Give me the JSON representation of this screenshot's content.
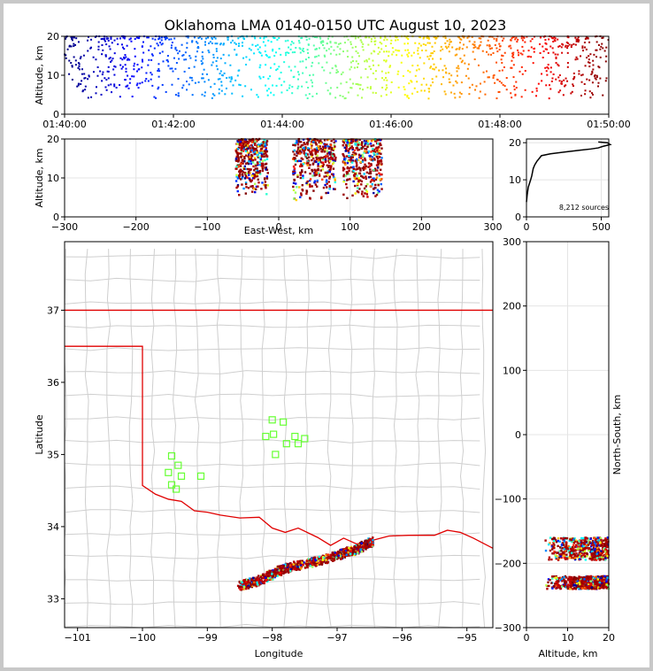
{
  "title": "Oklahoma LMA 0140-0150 UTC August 10, 2023",
  "source_count_label": "8,212 sources",
  "chart_data": [
    {
      "id": "time_height",
      "type": "scatter",
      "ylabel": "Altitude, km",
      "xlabel": "",
      "xlim_minutes": [
        100,
        110
      ],
      "ylim": [
        0,
        20
      ],
      "xtick_labels": [
        "01:40:00",
        "01:42:00",
        "01:44:00",
        "01:46:00",
        "01:48:00",
        "01:50:00"
      ],
      "xtick_values": [
        100,
        102,
        104,
        106,
        108,
        110
      ],
      "ytick_values": [
        0,
        10,
        20
      ],
      "color_by": "time (blue to red)"
    },
    {
      "id": "ew_altitude",
      "type": "scatter",
      "xlabel": "East-West, km",
      "ylabel": "Altitude, km",
      "xlim": [
        -300,
        300
      ],
      "ylim": [
        0,
        20
      ],
      "xtick_values": [
        -300,
        -200,
        -100,
        0,
        100,
        200,
        300
      ],
      "ytick_values": [
        0,
        10,
        20
      ],
      "clusters": [
        {
          "x": [
            -60,
            -15
          ],
          "y": [
            5,
            20
          ]
        },
        {
          "x": [
            20,
            80
          ],
          "y": [
            4,
            20
          ]
        },
        {
          "x": [
            90,
            145
          ],
          "y": [
            4,
            20
          ]
        }
      ]
    },
    {
      "id": "altitude_histogram",
      "type": "line",
      "xlim": [
        0,
        550
      ],
      "ylim": [
        0,
        21
      ],
      "xtick_values": [
        0,
        500
      ],
      "ytick_values": [
        0,
        10,
        20
      ],
      "x": [
        0,
        5,
        12,
        20,
        28,
        35,
        40,
        45,
        55,
        70,
        100,
        160,
        260,
        360,
        430,
        480,
        510,
        560,
        540,
        480
      ],
      "y": [
        4,
        6,
        8,
        9,
        10,
        11,
        12,
        13,
        14,
        15,
        16.5,
        17,
        17.5,
        18,
        18.3,
        18.6,
        19,
        19.5,
        20,
        20.2
      ]
    },
    {
      "id": "plan_view",
      "type": "scatter",
      "xlabel": "Longitude",
      "ylabel": "Latitude",
      "xlim": [
        -101.2,
        -94.6
      ],
      "ylim": [
        32.6,
        37.95
      ],
      "xtick_values": [
        -101,
        -100,
        -99,
        -98,
        -97,
        -96,
        -95
      ],
      "ytick_values": [
        33,
        34,
        35,
        36,
        37
      ],
      "stations_lonlat": [
        [
          -98.0,
          35.48
        ],
        [
          -97.83,
          35.45
        ],
        [
          -98.1,
          35.25
        ],
        [
          -97.98,
          35.28
        ],
        [
          -97.78,
          35.15
        ],
        [
          -97.65,
          35.25
        ],
        [
          -97.6,
          35.15
        ],
        [
          -97.95,
          35.0
        ],
        [
          -97.5,
          35.22
        ],
        [
          -99.55,
          34.98
        ],
        [
          -99.45,
          34.85
        ],
        [
          -99.6,
          34.75
        ],
        [
          -99.4,
          34.7
        ],
        [
          -99.55,
          34.58
        ],
        [
          -99.48,
          34.52
        ],
        [
          -99.1,
          34.7
        ]
      ],
      "storm_line_lonlat": [
        [
          -98.5,
          33.18
        ],
        [
          -98.2,
          33.25
        ],
        [
          -97.8,
          33.42
        ],
        [
          -97.4,
          33.5
        ],
        [
          -97.0,
          33.6
        ],
        [
          -96.7,
          33.68
        ],
        [
          -96.45,
          33.8
        ]
      ]
    },
    {
      "id": "altitude_ns",
      "type": "scatter",
      "xlabel": "Altitude, km",
      "ylabel": "North-South, km",
      "xlim": [
        0,
        20
      ],
      "ylim": [
        -300,
        300
      ],
      "xtick_values": [
        0,
        10,
        20
      ],
      "ytick_values": [
        -300,
        -200,
        -100,
        0,
        100,
        200,
        300
      ]
    }
  ]
}
